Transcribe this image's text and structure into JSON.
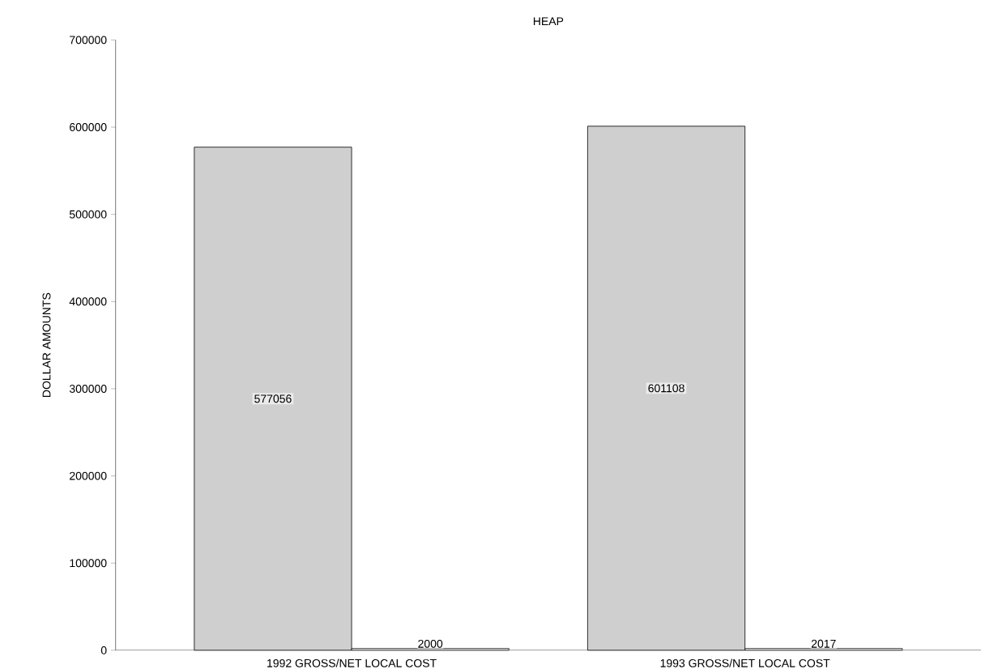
{
  "chart_data": {
    "type": "bar",
    "title": "HEAP",
    "ylabel": "DOLLAR AMOUNTS",
    "categories": [
      "1992 GROSS/NET LOCAL COST",
      "1993 GROSS/NET LOCAL COST"
    ],
    "series": [
      {
        "color": "#cfcfcf",
        "values": [
          577056,
          601108
        ]
      },
      {
        "color": "#ffffff",
        "values": [
          2000,
          2017
        ]
      }
    ],
    "ylim": [
      0,
      700000
    ],
    "yticks": [
      0,
      100000,
      200000,
      300000,
      400000,
      500000,
      600000,
      700000
    ],
    "data_labels": true,
    "grid": false
  }
}
